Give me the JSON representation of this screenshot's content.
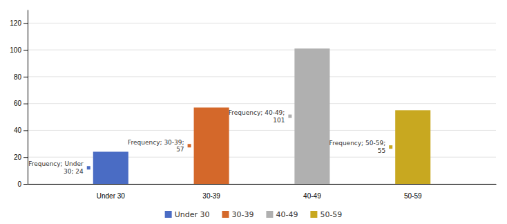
{
  "chart_data": {
    "type": "bar",
    "categories": [
      "Under 30",
      "30-39",
      "40-49",
      "50-59"
    ],
    "values": [
      24,
      57,
      101,
      55
    ],
    "colors": [
      "#4a6cc4",
      "#d4682a",
      "#b0b0b0",
      "#c8a820"
    ],
    "value_labels": [
      "Frequency; Under\n30; 24",
      "Frequency; 30-39;\n57",
      "Frequency; 40-49;\n101",
      "Frequency; 50-59;\n55"
    ],
    "ylim": [
      0,
      130
    ],
    "yticks": [
      0,
      20,
      40,
      60,
      80,
      100,
      120
    ],
    "grid": true,
    "legend": "bottom"
  }
}
